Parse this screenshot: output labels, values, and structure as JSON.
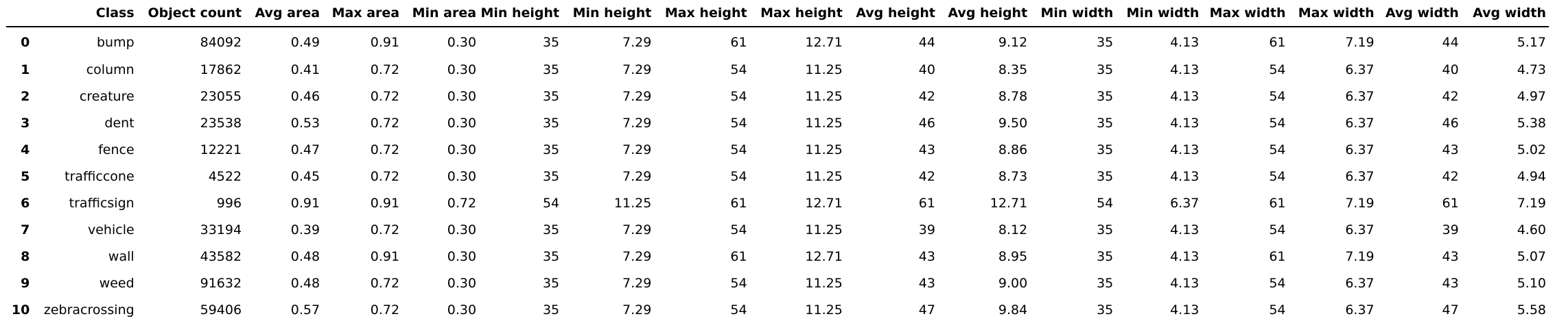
{
  "table": {
    "columns": [
      "",
      "Class",
      "Object count",
      "Avg area",
      "Max area",
      "Min area",
      "Min height",
      "Min height",
      "Max height",
      "Max height",
      "Avg height",
      "Avg height",
      "Min width",
      "Min width",
      "Max width",
      "Max width",
      "Avg width",
      "Avg width"
    ],
    "rows": [
      [
        "0",
        "bump",
        "84092",
        "0.49",
        "0.91",
        "0.30",
        "35",
        "7.29",
        "61",
        "12.71",
        "44",
        "9.12",
        "35",
        "4.13",
        "61",
        "7.19",
        "44",
        "5.17"
      ],
      [
        "1",
        "column",
        "17862",
        "0.41",
        "0.72",
        "0.30",
        "35",
        "7.29",
        "54",
        "11.25",
        "40",
        "8.35",
        "35",
        "4.13",
        "54",
        "6.37",
        "40",
        "4.73"
      ],
      [
        "2",
        "creature",
        "23055",
        "0.46",
        "0.72",
        "0.30",
        "35",
        "7.29",
        "54",
        "11.25",
        "42",
        "8.78",
        "35",
        "4.13",
        "54",
        "6.37",
        "42",
        "4.97"
      ],
      [
        "3",
        "dent",
        "23538",
        "0.53",
        "0.72",
        "0.30",
        "35",
        "7.29",
        "54",
        "11.25",
        "46",
        "9.50",
        "35",
        "4.13",
        "54",
        "6.37",
        "46",
        "5.38"
      ],
      [
        "4",
        "fence",
        "12221",
        "0.47",
        "0.72",
        "0.30",
        "35",
        "7.29",
        "54",
        "11.25",
        "43",
        "8.86",
        "35",
        "4.13",
        "54",
        "6.37",
        "43",
        "5.02"
      ],
      [
        "5",
        "trafficcone",
        "4522",
        "0.45",
        "0.72",
        "0.30",
        "35",
        "7.29",
        "54",
        "11.25",
        "42",
        "8.73",
        "35",
        "4.13",
        "54",
        "6.37",
        "42",
        "4.94"
      ],
      [
        "6",
        "trafficsign",
        "996",
        "0.91",
        "0.91",
        "0.72",
        "54",
        "11.25",
        "61",
        "12.71",
        "61",
        "12.71",
        "54",
        "6.37",
        "61",
        "7.19",
        "61",
        "7.19"
      ],
      [
        "7",
        "vehicle",
        "33194",
        "0.39",
        "0.72",
        "0.30",
        "35",
        "7.29",
        "54",
        "11.25",
        "39",
        "8.12",
        "35",
        "4.13",
        "54",
        "6.37",
        "39",
        "4.60"
      ],
      [
        "8",
        "wall",
        "43582",
        "0.48",
        "0.91",
        "0.30",
        "35",
        "7.29",
        "61",
        "12.71",
        "43",
        "8.95",
        "35",
        "4.13",
        "61",
        "7.19",
        "43",
        "5.07"
      ],
      [
        "9",
        "weed",
        "91632",
        "0.48",
        "0.72",
        "0.30",
        "35",
        "7.29",
        "54",
        "11.25",
        "43",
        "9.00",
        "35",
        "4.13",
        "54",
        "6.37",
        "43",
        "5.10"
      ],
      [
        "10",
        "zebracrossing",
        "59406",
        "0.57",
        "0.72",
        "0.30",
        "35",
        "7.29",
        "54",
        "11.25",
        "47",
        "9.84",
        "35",
        "4.13",
        "54",
        "6.37",
        "47",
        "5.58"
      ]
    ]
  }
}
